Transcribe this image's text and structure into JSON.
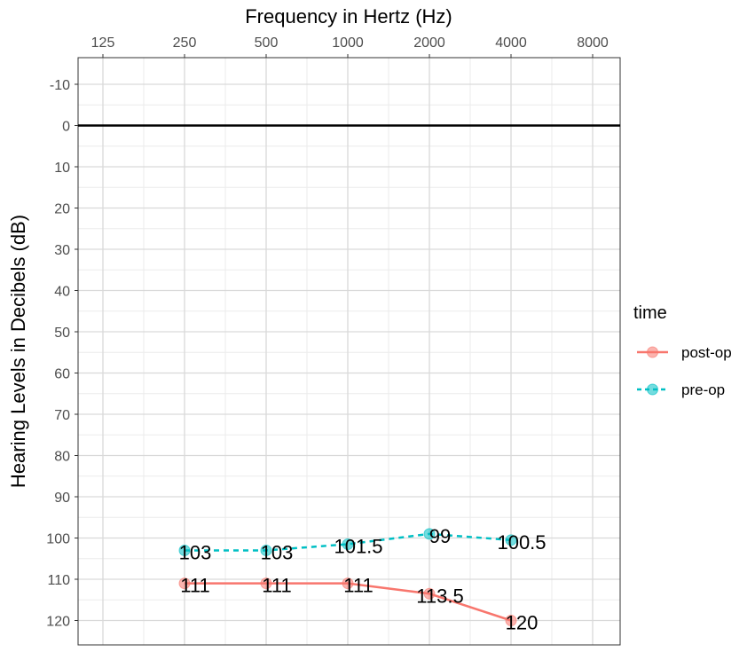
{
  "chart_data": {
    "type": "line",
    "xlabel": "Frequency in Hertz (Hz)",
    "ylabel": "Hearing Levels in Decibels (dB)",
    "x_scale": "log2",
    "x_ticks": [
      125,
      250,
      500,
      1000,
      2000,
      4000,
      8000
    ],
    "x_tick_labels": [
      "125",
      "250",
      "500",
      "1000",
      "2000",
      "4000",
      "8000"
    ],
    "y_reversed": true,
    "ylim": [
      -15,
      125
    ],
    "y_ticks": [
      -10,
      0,
      10,
      20,
      30,
      40,
      50,
      60,
      70,
      80,
      90,
      100,
      110,
      120
    ],
    "y_tick_labels": [
      "-10",
      "0",
      "10",
      "20",
      "30",
      "40",
      "50",
      "60",
      "70",
      "80",
      "90",
      "100",
      "110",
      "120"
    ],
    "reference_line": 0,
    "grid": true,
    "legend": {
      "title": "time",
      "position": "right"
    },
    "series": [
      {
        "name": "post-op",
        "color": "#F8766D",
        "line_style": "solid",
        "x": [
          250,
          500,
          1000,
          2000,
          4000
        ],
        "values": [
          111,
          111,
          111,
          113.5,
          120
        ],
        "labels": [
          "111",
          "111",
          "111",
          "113.5",
          "120"
        ]
      },
      {
        "name": "pre-op",
        "color": "#00BFC4",
        "line_style": "dashed",
        "x": [
          250,
          500,
          1000,
          2000,
          4000
        ],
        "values": [
          103,
          103,
          101.5,
          99,
          100.5
        ],
        "labels": [
          "103",
          "103",
          "101.5",
          "99",
          "100.5"
        ]
      }
    ]
  }
}
